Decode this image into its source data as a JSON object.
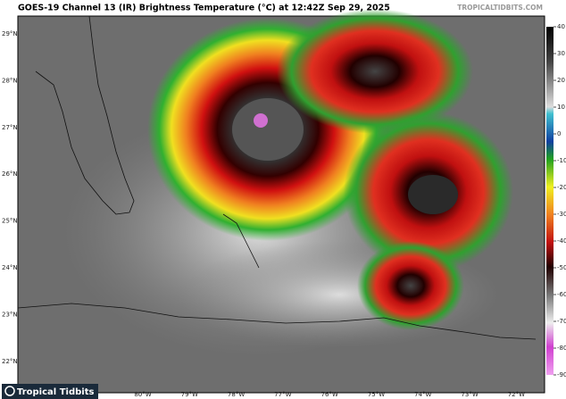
{
  "header": {
    "title": "GOES-19 Channel 13 (IR) Brightness Temperature (°C) at 12:42Z Sep 29, 2025",
    "source": "TROPICALTIDBITS.COM"
  },
  "map": {
    "lat_labels": [
      "29°N",
      "28°N",
      "27°N",
      "26°N",
      "25°N",
      "24°N",
      "23°N",
      "22°N"
    ],
    "lon_labels": [
      "80°W",
      "79°W",
      "78°W",
      "77°W",
      "76°W",
      "75°W",
      "74°W",
      "73°W",
      "72°W"
    ]
  },
  "colorbar": {
    "range": [
      -90,
      40
    ],
    "ticks": [
      40,
      30,
      20,
      10,
      0,
      -10,
      -20,
      -30,
      -40,
      -50,
      -60,
      -70,
      -80,
      -90
    ]
  },
  "logo": {
    "text": "Tropical Tidbits"
  }
}
